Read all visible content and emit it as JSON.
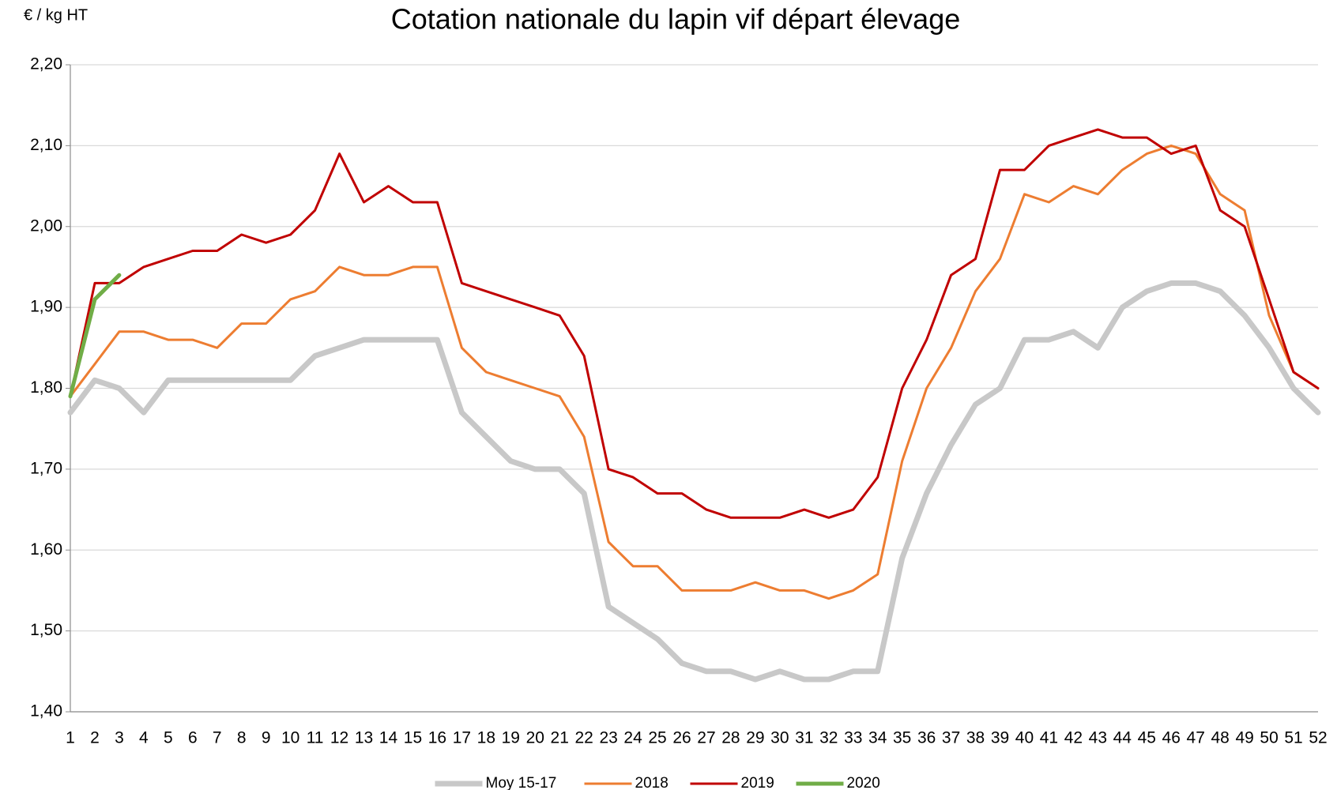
{
  "chart_data": {
    "type": "line",
    "title": "Cotation nationale du lapin vif départ élevage",
    "y_label": "€ / kg HT",
    "categories": [
      "1",
      "2",
      "3",
      "4",
      "5",
      "6",
      "7",
      "8",
      "9",
      "10",
      "11",
      "12",
      "13",
      "14",
      "15",
      "16",
      "17",
      "18",
      "19",
      "20",
      "21",
      "22",
      "23",
      "24",
      "25",
      "26",
      "27",
      "28",
      "29",
      "30",
      "31",
      "32",
      "33",
      "34",
      "35",
      "36",
      "37",
      "38",
      "39",
      "40",
      "41",
      "42",
      "43",
      "44",
      "45",
      "46",
      "47",
      "48",
      "49",
      "50",
      "51",
      "52"
    ],
    "series": [
      {
        "name": "Moy 15-17",
        "color": "#c8c8c8",
        "values": [
          1.77,
          1.81,
          1.8,
          1.77,
          1.81,
          1.81,
          1.81,
          1.81,
          1.81,
          1.81,
          1.84,
          1.85,
          1.86,
          1.86,
          1.86,
          1.86,
          1.77,
          1.74,
          1.71,
          1.7,
          1.7,
          1.67,
          1.53,
          1.51,
          1.49,
          1.46,
          1.45,
          1.45,
          1.44,
          1.45,
          1.44,
          1.44,
          1.45,
          1.45,
          1.59,
          1.67,
          1.73,
          1.78,
          1.8,
          1.86,
          1.86,
          1.87,
          1.85,
          1.9,
          1.92,
          1.93,
          1.93,
          1.92,
          1.89,
          1.85,
          1.8,
          1.77
        ]
      },
      {
        "name": "2018",
        "color": "#ed7d31",
        "values": [
          1.79,
          1.83,
          1.87,
          1.87,
          1.86,
          1.86,
          1.85,
          1.88,
          1.88,
          1.91,
          1.92,
          1.95,
          1.94,
          1.94,
          1.95,
          1.95,
          1.85,
          1.82,
          1.81,
          1.8,
          1.79,
          1.74,
          1.61,
          1.58,
          1.58,
          1.55,
          1.55,
          1.55,
          1.56,
          1.55,
          1.55,
          1.54,
          1.55,
          1.57,
          1.71,
          1.8,
          1.85,
          1.92,
          1.96,
          2.04,
          2.03,
          2.05,
          2.04,
          2.07,
          2.09,
          2.1,
          2.09,
          2.04,
          2.02,
          1.89,
          1.82,
          1.8
        ]
      },
      {
        "name": "2019",
        "color": "#c00000",
        "values": [
          1.79,
          1.93,
          1.93,
          1.95,
          1.96,
          1.97,
          1.97,
          1.99,
          1.98,
          1.99,
          2.02,
          2.09,
          2.03,
          2.05,
          2.03,
          2.03,
          1.93,
          1.92,
          1.91,
          1.9,
          1.89,
          1.84,
          1.7,
          1.69,
          1.67,
          1.67,
          1.65,
          1.64,
          1.64,
          1.64,
          1.65,
          1.64,
          1.65,
          1.69,
          1.8,
          1.86,
          1.94,
          1.96,
          2.07,
          2.07,
          2.1,
          2.11,
          2.12,
          2.11,
          2.11,
          2.09,
          2.1,
          2.02,
          2.0,
          1.91,
          1.82,
          1.8
        ]
      },
      {
        "name": "2020",
        "color": "#70ad47",
        "values": [
          1.79,
          1.91,
          1.94,
          null,
          null,
          null,
          null,
          null,
          null,
          null,
          null,
          null,
          null,
          null,
          null,
          null,
          null,
          null,
          null,
          null,
          null,
          null,
          null,
          null,
          null,
          null,
          null,
          null,
          null,
          null,
          null,
          null,
          null,
          null,
          null,
          null,
          null,
          null,
          null,
          null,
          null,
          null,
          null,
          null,
          null,
          null,
          null,
          null,
          null,
          null,
          null,
          null
        ]
      }
    ],
    "ylim": [
      1.4,
      2.2
    ],
    "yticks": [
      {
        "value": 1.4,
        "label": "1,40"
      },
      {
        "value": 1.5,
        "label": "1,50"
      },
      {
        "value": 1.6,
        "label": "1,60"
      },
      {
        "value": 1.7,
        "label": "1,70"
      },
      {
        "value": 1.8,
        "label": "1,80"
      },
      {
        "value": 1.9,
        "label": "1,90"
      },
      {
        "value": 2.0,
        "label": "2,00"
      },
      {
        "value": 2.1,
        "label": "2,10"
      },
      {
        "value": 2.2,
        "label": "2,20"
      }
    ],
    "grid": true,
    "legend": "bottom"
  }
}
